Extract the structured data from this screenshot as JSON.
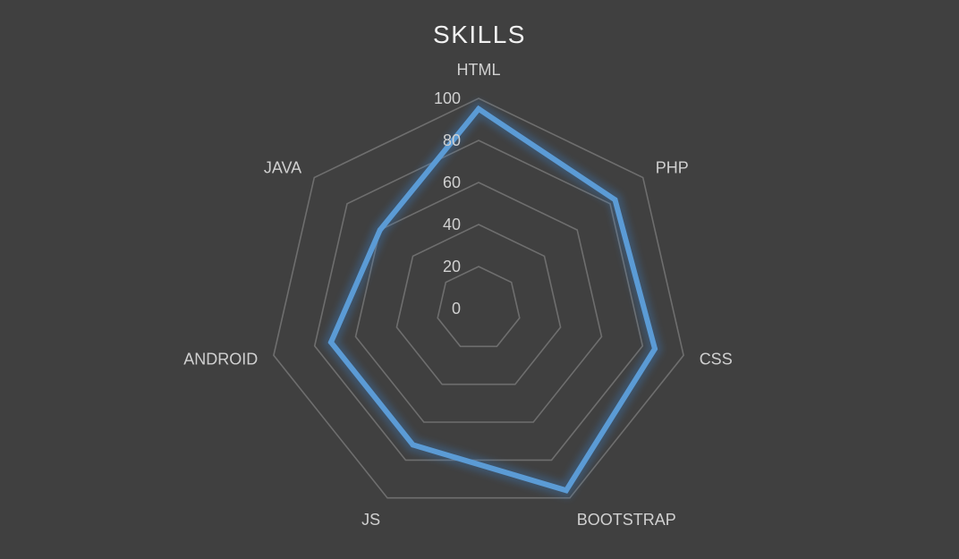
{
  "chart_data": {
    "type": "radar",
    "title": "SKILLS",
    "categories": [
      "HTML",
      "PHP",
      "CSS",
      "BOOTSTRAP",
      "JS",
      "ANDROID",
      "JAVA"
    ],
    "series": [
      {
        "values": [
          95,
          83,
          86,
          96,
          72,
          72,
          60
        ]
      }
    ],
    "range": [
      0,
      100
    ],
    "ticks": [
      0,
      20,
      40,
      60,
      80,
      100
    ],
    "grid": true,
    "legend": "none",
    "colors": {
      "series": "#5b9bd5",
      "glow": "#3b8be0",
      "grid": "#6e6e6e",
      "background": "#404040",
      "text": "#d0d0d0"
    }
  }
}
